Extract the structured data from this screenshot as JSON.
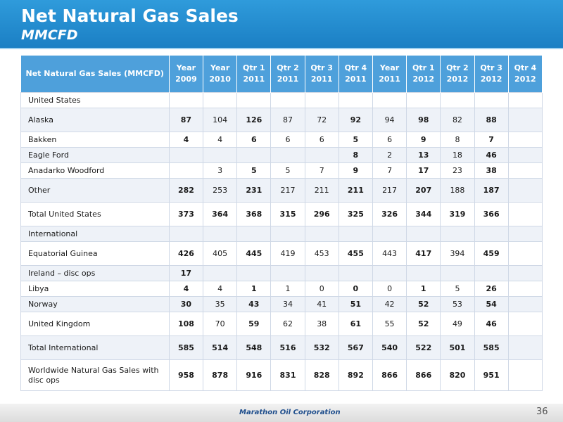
{
  "slide": {
    "title": "Net Natural Gas Sales",
    "subtitle": "MMCFD"
  },
  "table": {
    "header_label": "Net Natural Gas Sales (MMCFD)",
    "columns": [
      [
        "Year",
        "2009"
      ],
      [
        "Year",
        "2010"
      ],
      [
        "Qtr 1",
        "2011"
      ],
      [
        "Qtr 2",
        "2011"
      ],
      [
        "Qtr 3",
        "2011"
      ],
      [
        "Qtr 4",
        "2011"
      ],
      [
        "Year",
        "2011"
      ],
      [
        "Qtr 1",
        "2012"
      ],
      [
        "Qtr 2",
        "2012"
      ],
      [
        "Qtr 3",
        "2012"
      ],
      [
        "Qtr 4",
        "2012"
      ]
    ],
    "rows": [
      {
        "label": "United States",
        "values": [
          "",
          "",
          "",
          "",
          "",
          "",
          "",
          "",
          "",
          "",
          ""
        ],
        "height": 22
      },
      {
        "label": "Alaska",
        "values": [
          "87",
          "104",
          "126",
          "87",
          "72",
          "92",
          "94",
          "98",
          "82",
          "88",
          ""
        ],
        "height": 34
      },
      {
        "label": "Bakken",
        "values": [
          "4",
          "4",
          "6",
          "6",
          "6",
          "5",
          "6",
          "9",
          "8",
          "7",
          ""
        ],
        "height": 22
      },
      {
        "label": "Eagle Ford",
        "values": [
          "",
          "",
          "",
          "",
          "",
          "8",
          "2",
          "13",
          "18",
          "46",
          ""
        ],
        "height": 22
      },
      {
        "label": "Anadarko Woodford",
        "values": [
          "",
          "3",
          "5",
          "5",
          "7",
          "9",
          "7",
          "17",
          "23",
          "38",
          ""
        ],
        "height": 22
      },
      {
        "label": "Other",
        "values": [
          "282",
          "253",
          "231",
          "217",
          "211",
          "211",
          "217",
          "207",
          "188",
          "187",
          ""
        ],
        "height": 34
      },
      {
        "label": "Total United States",
        "values": [
          "373",
          "364",
          "368",
          "315",
          "296",
          "325",
          "326",
          "344",
          "319",
          "366",
          ""
        ],
        "height": 34,
        "total": true
      },
      {
        "label": "International",
        "values": [
          "",
          "",
          "",
          "",
          "",
          "",
          "",
          "",
          "",
          "",
          ""
        ],
        "height": 22
      },
      {
        "label": "Equatorial Guinea",
        "values": [
          "426",
          "405",
          "445",
          "419",
          "453",
          "455",
          "443",
          "417",
          "394",
          "459",
          ""
        ],
        "height": 34
      },
      {
        "label": "Ireland – disc ops",
        "values": [
          "17",
          "",
          "",
          "",
          "",
          "",
          "",
          "",
          "",
          "",
          ""
        ],
        "height": 22
      },
      {
        "label": "Libya",
        "values": [
          "4",
          "4",
          "1",
          "1",
          "0",
          "0",
          "0",
          "1",
          "5",
          "26",
          ""
        ],
        "height": 22
      },
      {
        "label": "Norway",
        "values": [
          "30",
          "35",
          "43",
          "34",
          "41",
          "51",
          "42",
          "52",
          "53",
          "54",
          ""
        ],
        "height": 22
      },
      {
        "label": "United Kingdom",
        "values": [
          "108",
          "70",
          "59",
          "62",
          "38",
          "61",
          "55",
          "52",
          "49",
          "46",
          ""
        ],
        "height": 34
      },
      {
        "label": "Total International",
        "values": [
          "585",
          "514",
          "548",
          "516",
          "532",
          "567",
          "540",
          "522",
          "501",
          "585",
          ""
        ],
        "height": 34,
        "total": true
      },
      {
        "label": "Worldwide Natural Gas Sales with disc ops",
        "values": [
          "958",
          "878",
          "916",
          "831",
          "828",
          "892",
          "866",
          "866",
          "820",
          "951",
          ""
        ],
        "height": 44,
        "total": true
      }
    ],
    "bold_columns": [
      0,
      2,
      5,
      7,
      9
    ]
  },
  "footer": {
    "company": "Marathon Oil Corporation",
    "page_number": "36"
  },
  "colors": {
    "header_bg": "#2f9bdb",
    "table_header_bg": "#4ea0db",
    "company_text": "#1f4e8c"
  }
}
